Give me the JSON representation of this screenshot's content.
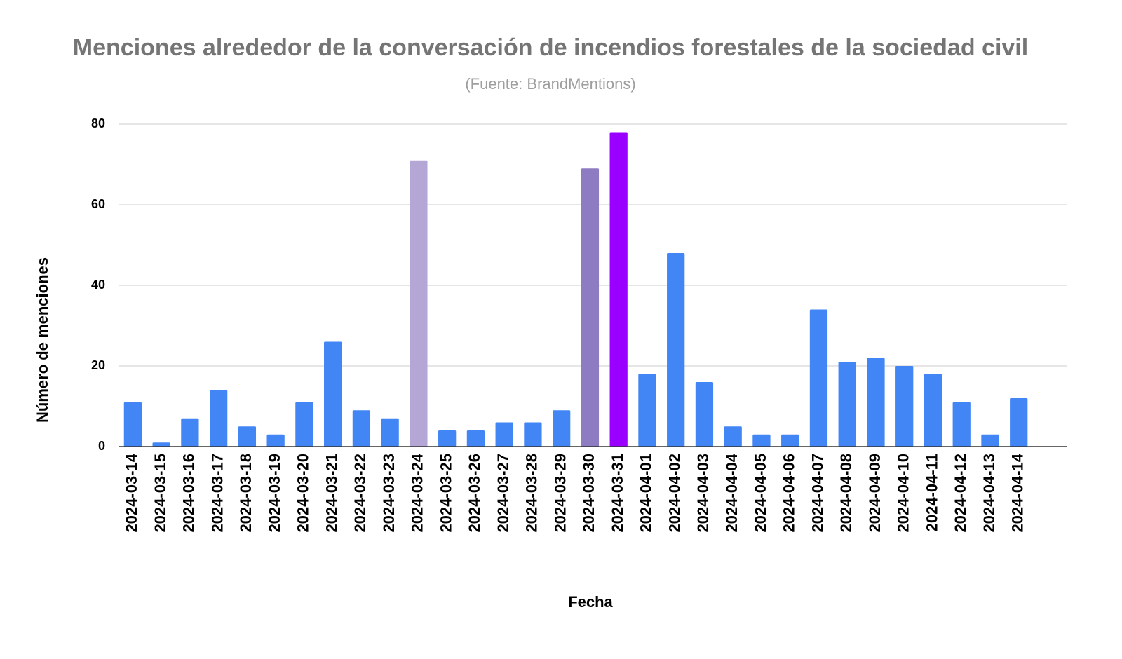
{
  "chart_data": {
    "type": "bar",
    "title": "Menciones alrededor de la conversación de incendios forestales de la sociedad civil",
    "subtitle": "(Fuente: BrandMentions)",
    "x_label": "Fecha",
    "y_label": "Número de menciones",
    "categories": [
      "2024-03-14",
      "2024-03-15",
      "2024-03-16",
      "2024-03-17",
      "2024-03-18",
      "2024-03-19",
      "2024-03-20",
      "2024-03-21",
      "2024-03-22",
      "2024-03-23",
      "2024-03-24",
      "2024-03-25",
      "2024-03-26",
      "2024-03-27",
      "2024-03-28",
      "2024-03-29",
      "2024-03-30",
      "2024-03-31",
      "2024-04-01",
      "2024-04-02",
      "2024-04-03",
      "2024-04-04",
      "2024-04-05",
      "2024-04-06",
      "2024-04-07",
      "2024-04-08",
      "2024-04-09",
      "2024-04-10",
      "2024-04-11",
      "2024-04-12",
      "2024-04-13",
      "2024-04-14"
    ],
    "values": [
      11,
      1,
      7,
      14,
      5,
      3,
      11,
      26,
      9,
      7,
      71,
      4,
      4,
      6,
      6,
      9,
      69,
      78,
      18,
      48,
      16,
      5,
      3,
      3,
      34,
      21,
      22,
      20,
      18,
      11,
      3,
      12
    ],
    "colors": [
      "#4285f4",
      "#4285f4",
      "#4285f4",
      "#4285f4",
      "#4285f4",
      "#4285f4",
      "#4285f4",
      "#4285f4",
      "#4285f4",
      "#4285f4",
      "#b4a7d6",
      "#4285f4",
      "#4285f4",
      "#4285f4",
      "#4285f4",
      "#4285f4",
      "#8e7cc3",
      "#9900ff",
      "#4285f4",
      "#4285f4",
      "#4285f4",
      "#4285f4",
      "#4285f4",
      "#4285f4",
      "#4285f4",
      "#4285f4",
      "#4285f4",
      "#4285f4",
      "#4285f4",
      "#4285f4",
      "#4285f4",
      "#4285f4"
    ],
    "ylim": [
      0,
      80
    ],
    "yticks": [
      0,
      20,
      40,
      60,
      80
    ],
    "grid": true
  }
}
